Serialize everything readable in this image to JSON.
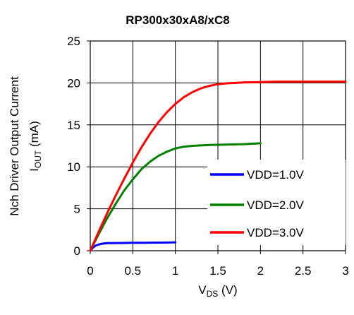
{
  "chart_data": {
    "type": "line",
    "title": "RP300x30xA8/xC8",
    "xlabel": {
      "main": "V",
      "sub": "DS",
      "unit": " (V)"
    },
    "ylabel": {
      "line1": "Nch Driver Output Current",
      "main": "I",
      "sub": "OUT",
      "unit": " (mA)"
    },
    "xlim": [
      0,
      3
    ],
    "ylim": [
      0,
      25
    ],
    "x_ticks": [
      "0",
      "0.5",
      "1",
      "1.5",
      "2",
      "2.5",
      "3"
    ],
    "x_tick_values": [
      0,
      0.5,
      1,
      1.5,
      2,
      2.5,
      3
    ],
    "y_ticks": [
      "0",
      "5",
      "10",
      "15",
      "20",
      "25"
    ],
    "y_tick_values": [
      0,
      5,
      10,
      15,
      20,
      25
    ],
    "grid": true,
    "legend_position": "bottom-right",
    "series": [
      {
        "name": "VDD=1.0V",
        "color": "#0000ff",
        "x": [
          0,
          0.03,
          0.06,
          0.1,
          0.15,
          0.2,
          0.3,
          0.4,
          0.5,
          0.6,
          0.7,
          0.8,
          0.9,
          1.0
        ],
        "y": [
          0,
          0.35,
          0.6,
          0.75,
          0.85,
          0.9,
          0.92,
          0.93,
          0.94,
          0.95,
          0.96,
          0.97,
          0.98,
          1.0
        ]
      },
      {
        "name": "VDD=2.0V",
        "color": "#008000",
        "x": [
          0,
          0.1,
          0.2,
          0.3,
          0.4,
          0.5,
          0.6,
          0.7,
          0.8,
          0.9,
          1.0,
          1.1,
          1.2,
          1.4,
          1.6,
          1.8,
          2.0
        ],
        "y": [
          0,
          2.0,
          3.9,
          5.6,
          7.2,
          8.5,
          9.7,
          10.6,
          11.3,
          11.8,
          12.2,
          12.4,
          12.5,
          12.6,
          12.65,
          12.7,
          12.8
        ]
      },
      {
        "name": "VDD=3.0V",
        "color": "#ff0000",
        "x": [
          0,
          0.1,
          0.2,
          0.3,
          0.4,
          0.5,
          0.6,
          0.7,
          0.8,
          0.9,
          1.0,
          1.1,
          1.2,
          1.3,
          1.4,
          1.5,
          1.6,
          1.8,
          2.0,
          2.2,
          2.5,
          2.8,
          3.0
        ],
        "y": [
          0,
          2.3,
          4.5,
          6.6,
          8.6,
          10.5,
          12.3,
          13.9,
          15.3,
          16.5,
          17.5,
          18.3,
          18.9,
          19.35,
          19.65,
          19.85,
          19.95,
          20.05,
          20.1,
          20.15,
          20.15,
          20.15,
          20.15
        ]
      }
    ]
  }
}
